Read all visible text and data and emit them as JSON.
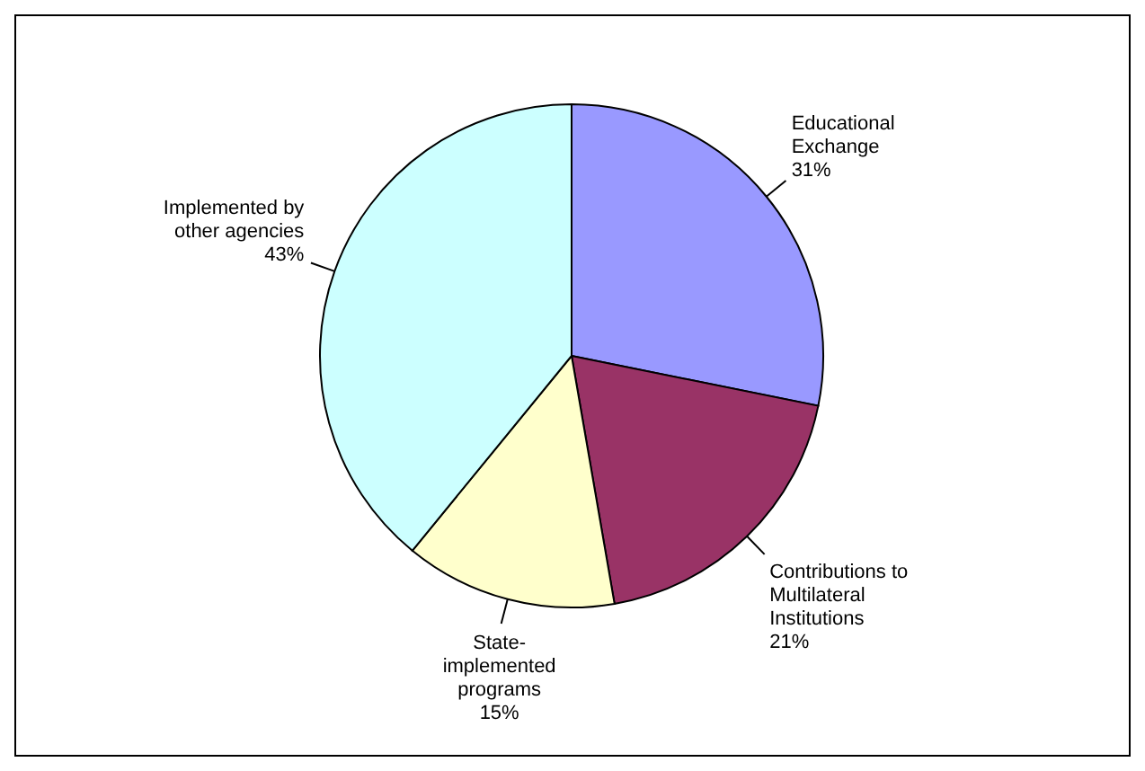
{
  "chart_data": {
    "type": "pie",
    "categories": [
      "Educational\nExchange",
      "Contributions to\nMultilateral\nInstitutions",
      "State-\nimplemented\nprograms",
      "Implemented by\nother agencies"
    ],
    "values": [
      31,
      21,
      15,
      43
    ],
    "value_labels": [
      "31%",
      "21%",
      "15%",
      "43%"
    ],
    "colors": [
      "#9999ff",
      "#993366",
      "#ffffcc",
      "#ccffff"
    ]
  }
}
